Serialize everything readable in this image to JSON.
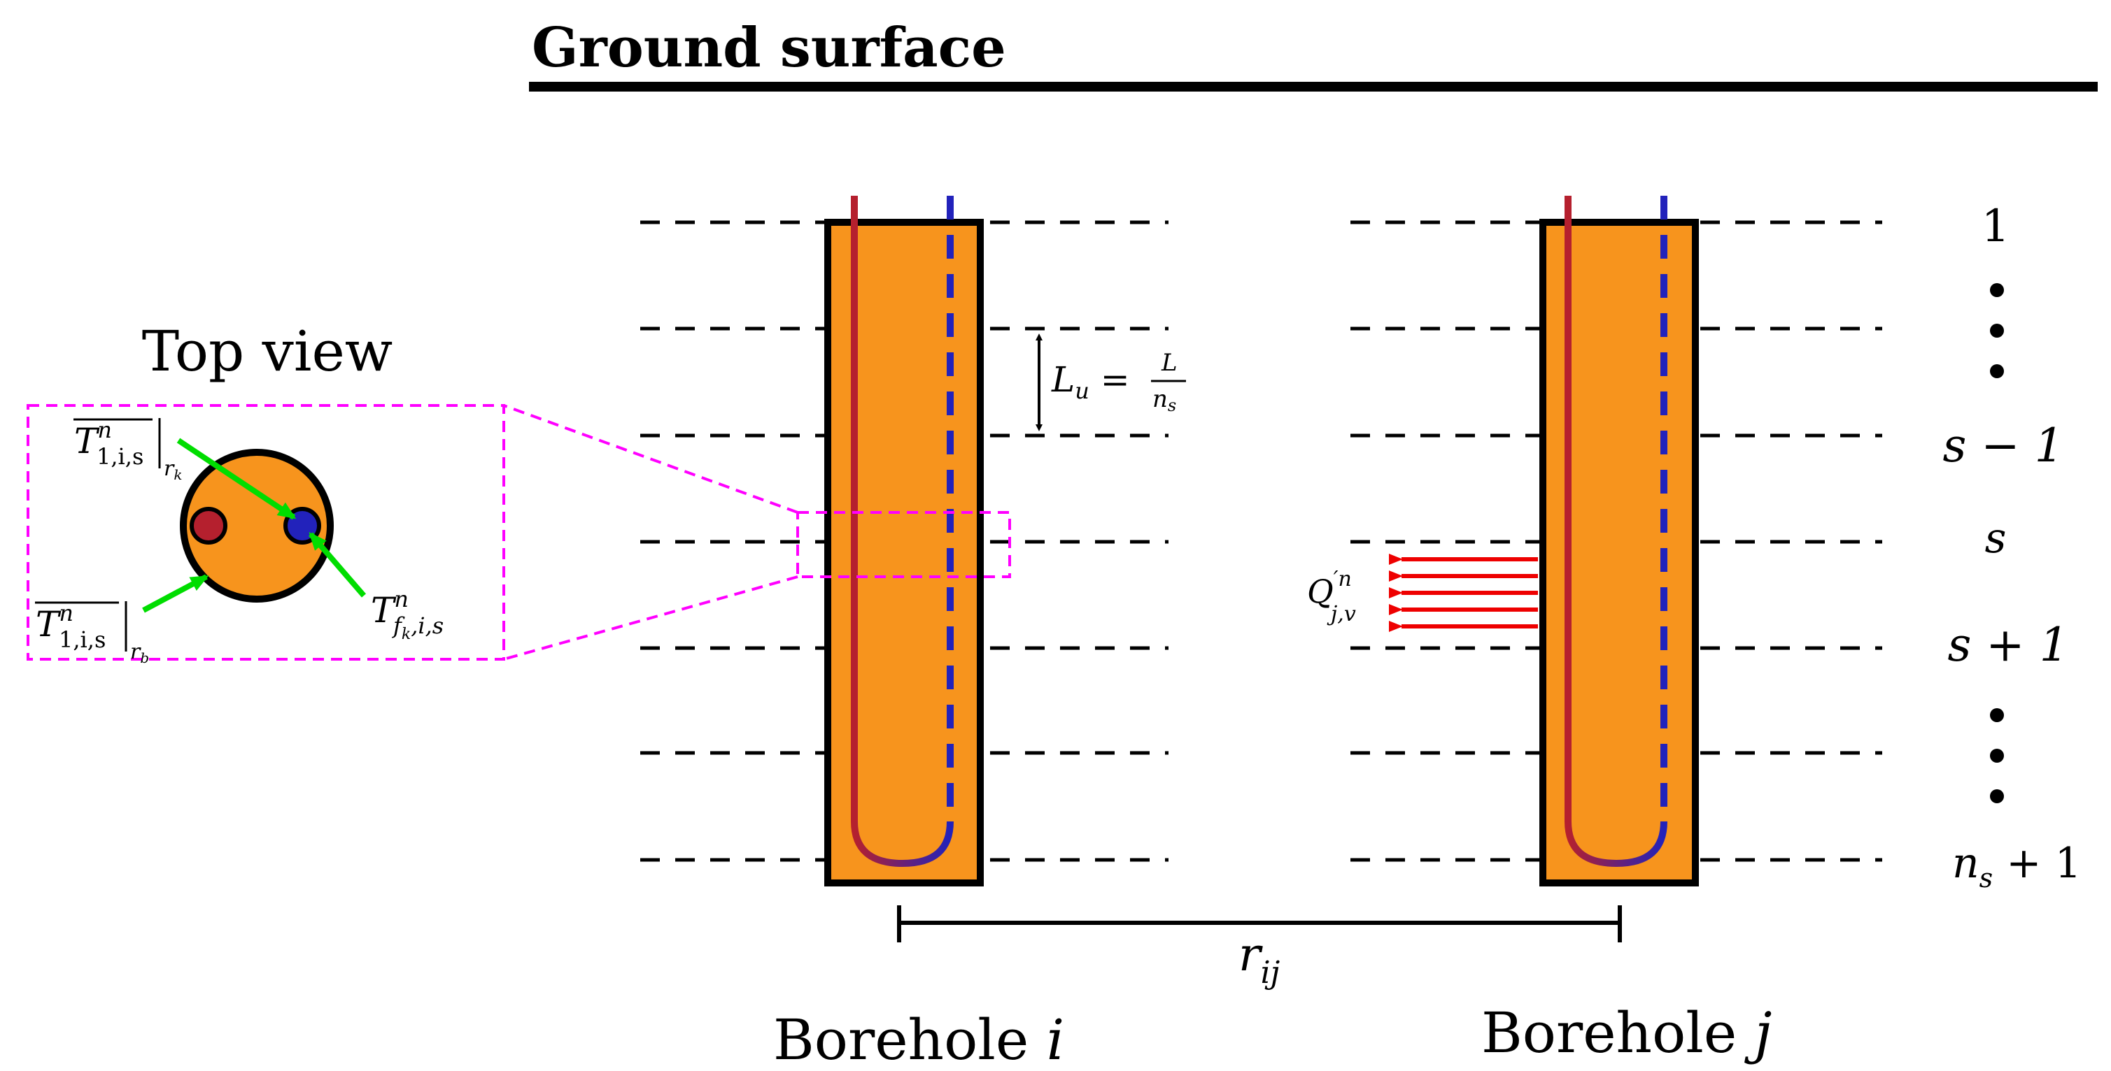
{
  "ground": {
    "title": "Ground surface"
  },
  "top_view": {
    "title": "Top view",
    "label_rk": {
      "main": "T",
      "sup": "n",
      "sub": "1,i,s",
      "eval": "r",
      "eval_sub": "k"
    },
    "label_rb": {
      "main": "T",
      "sup": "n",
      "sub": "1,i,s",
      "eval": "r",
      "eval_sub": "b"
    },
    "label_f": {
      "main": "T",
      "sup": "n",
      "sub_main": "f",
      "sub_sub": "k",
      "sub_rest": ",i,s"
    }
  },
  "segment_length": {
    "lhs": "L",
    "lhs_sub": "u",
    "eq": " = ",
    "num": "L",
    "den": "n",
    "den_sub": "s"
  },
  "heat_flux": {
    "main": "Q",
    "sup": "′n",
    "sub": "j,v"
  },
  "distance": {
    "main": "r",
    "sub": "ij"
  },
  "boreholes": [
    {
      "name": "Borehole ",
      "index": "i"
    },
    {
      "name": "Borehole ",
      "index": "j"
    }
  ],
  "segment_labels": {
    "first": "1",
    "s_minus_1": "s − 1",
    "s": "s",
    "s_plus_1": "s + 1",
    "last_main": "n",
    "last_sub": "s",
    "last_rest": " + 1"
  },
  "colors": {
    "grout": "#f7941d",
    "outline": "#000000",
    "inlet_pipe": "#b5202e",
    "outlet_pipe": "#2222bb",
    "zoom_box": "#ff00ff",
    "pointer": "#00dd00",
    "flux_arrow": "#ee0000"
  }
}
